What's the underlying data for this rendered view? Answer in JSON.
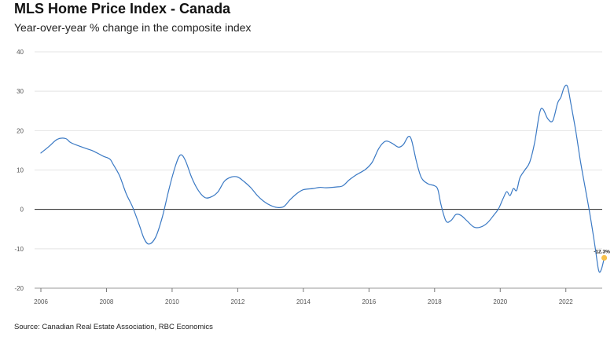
{
  "chart_data": {
    "type": "line",
    "title": "MLS Home Price Index - Canada",
    "subtitle": "Year-over-year % change in the composite index",
    "source": "Source: Canadian Real Estate Association, RBC Economics",
    "xlabel": "",
    "ylabel": "",
    "xlim": [
      2006.0,
      2023.3
    ],
    "ylim": [
      -20,
      40
    ],
    "x_ticks": [
      2006,
      2008,
      2010,
      2012,
      2014,
      2016,
      2018,
      2020,
      2022
    ],
    "y_ticks": [
      -20,
      -10,
      0,
      10,
      20,
      30,
      40
    ],
    "grid": "horizontal",
    "legend": "none",
    "line_color": "#3a79c4",
    "zero_line_color": "#222222",
    "marker_color": "#f7c04a",
    "annotation": {
      "text": "-12.3%",
      "x": 2023.17,
      "y": -12.3
    },
    "series": [
      {
        "x": [
          2006.0,
          2006.25,
          2006.5,
          2006.75,
          2006.9,
          2007.1,
          2007.4,
          2007.6,
          2007.9,
          2008.1,
          2008.2,
          2008.4,
          2008.6,
          2008.8,
          2009.0,
          2009.15,
          2009.3,
          2009.5,
          2009.7,
          2009.9,
          2010.1,
          2010.25,
          2010.4,
          2010.6,
          2010.8,
          2011.0,
          2011.2,
          2011.4,
          2011.6,
          2011.8,
          2012.0,
          2012.2,
          2012.4,
          2012.6,
          2012.8,
          2013.0,
          2013.2,
          2013.4,
          2013.6,
          2013.8,
          2014.0,
          2014.3,
          2014.5,
          2014.7,
          2015.0,
          2015.2,
          2015.4,
          2015.6,
          2015.9,
          2016.1,
          2016.3,
          2016.5,
          2016.7,
          2016.9,
          2017.05,
          2017.2,
          2017.3,
          2017.45,
          2017.6,
          2017.8,
          2018.0,
          2018.1,
          2018.2,
          2018.35,
          2018.5,
          2018.65,
          2018.8,
          2019.0,
          2019.2,
          2019.4,
          2019.6,
          2019.8,
          2019.95,
          2020.1,
          2020.2,
          2020.3,
          2020.4,
          2020.5,
          2020.6,
          2020.75,
          2020.9,
          2021.05,
          2021.2,
          2021.3,
          2021.45,
          2021.6,
          2021.75,
          2021.85,
          2021.95,
          2022.05,
          2022.15,
          2022.3,
          2022.45,
          2022.6,
          2022.75,
          2022.9,
          2023.0,
          2023.08,
          2023.17
        ],
        "y": [
          14.3,
          16.0,
          17.8,
          18.0,
          17.0,
          16.3,
          15.4,
          14.8,
          13.5,
          12.8,
          11.5,
          8.5,
          4.0,
          0.5,
          -4.0,
          -7.5,
          -8.8,
          -7.0,
          -2.0,
          5.0,
          11.0,
          13.8,
          12.5,
          8.0,
          4.8,
          3.0,
          3.2,
          4.5,
          7.2,
          8.2,
          8.2,
          7.0,
          5.5,
          3.5,
          2.0,
          1.0,
          0.5,
          0.7,
          2.5,
          4.0,
          5.0,
          5.3,
          5.6,
          5.5,
          5.7,
          6.0,
          7.5,
          8.7,
          10.2,
          12.0,
          15.5,
          17.3,
          16.8,
          15.8,
          16.5,
          18.5,
          17.5,
          12.0,
          8.0,
          6.5,
          6.0,
          5.0,
          1.0,
          -3.0,
          -2.8,
          -1.3,
          -1.5,
          -3.0,
          -4.5,
          -4.5,
          -3.5,
          -1.5,
          0.2,
          3.0,
          4.5,
          3.5,
          5.3,
          4.8,
          8.0,
          10.0,
          12.0,
          17.0,
          24.5,
          25.5,
          23.0,
          22.5,
          27.0,
          28.5,
          31.0,
          31.2,
          27.0,
          20.0,
          12.0,
          5.0,
          -2.0,
          -10.0,
          -15.5,
          -15.3,
          -12.3
        ]
      }
    ]
  }
}
